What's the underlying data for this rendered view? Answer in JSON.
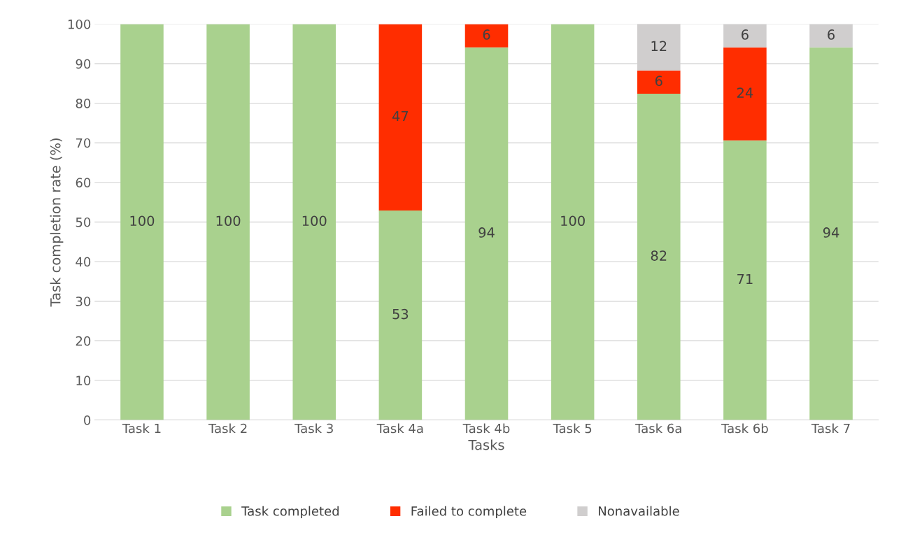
{
  "chart_data": {
    "type": "bar",
    "stacked": true,
    "xlabel": "Tasks",
    "ylabel": "Task completion rate (%)",
    "categories": [
      "Task 1",
      "Task 2",
      "Task 3",
      "Task 4a",
      "Task 4b",
      "Task 5",
      "Task 6a",
      "Task 6b",
      "Task 7"
    ],
    "series": [
      {
        "name": "Task completed",
        "color": "#a9d18e",
        "values": [
          100,
          100,
          100,
          52.9,
          94.1,
          100,
          82.4,
          70.6,
          94.1
        ],
        "value_labels": [
          "100",
          "100",
          "100",
          "53",
          "94",
          "100",
          "82",
          "71",
          "94"
        ]
      },
      {
        "name": "Failed to complete",
        "color": "#ff2d00",
        "values": [
          0,
          0,
          0,
          47.1,
          5.9,
          0,
          5.9,
          23.5,
          0
        ],
        "value_labels": [
          null,
          null,
          null,
          "47",
          "6",
          null,
          "6",
          "24",
          null
        ]
      },
      {
        "name": "Nonavailable",
        "color": "#d0cece",
        "values": [
          0,
          0,
          0,
          0,
          0,
          0,
          11.8,
          5.9,
          5.9
        ],
        "value_labels": [
          null,
          null,
          null,
          null,
          null,
          null,
          "12",
          "6",
          "6"
        ]
      }
    ],
    "ylim": [
      0,
      100
    ],
    "yticks": [
      0,
      10,
      20,
      30,
      40,
      50,
      60,
      70,
      80,
      90,
      100
    ],
    "grid": "y",
    "legend": "bottom"
  }
}
